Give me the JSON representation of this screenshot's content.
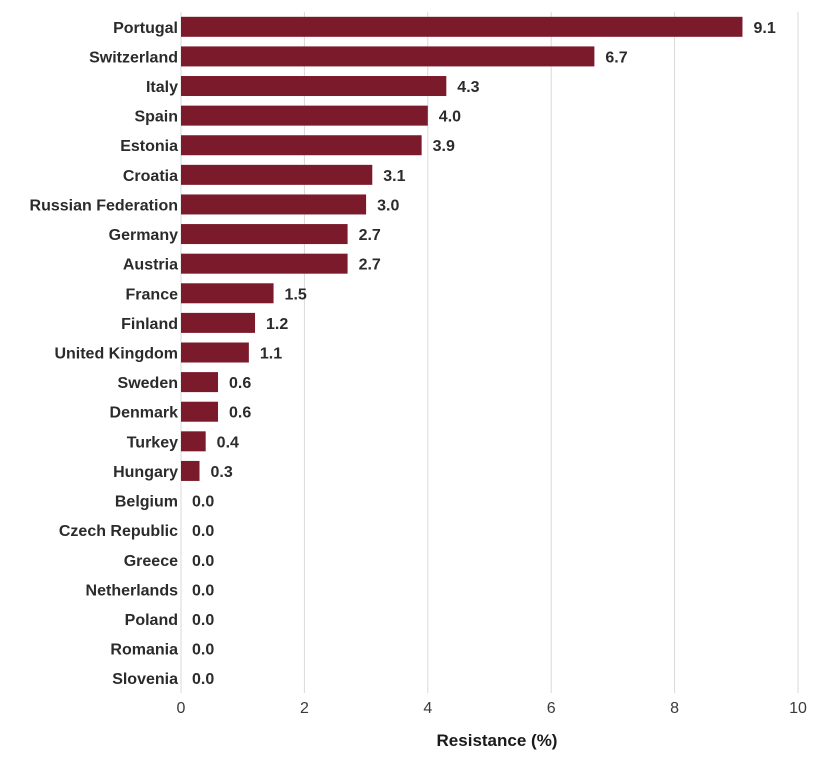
{
  "chart_data": {
    "type": "bar",
    "orientation": "horizontal",
    "xlabel": "Resistance (%)",
    "ylabel": "",
    "xlim": [
      0,
      10
    ],
    "xticks": [
      0,
      2,
      4,
      6,
      8,
      10
    ],
    "grid": "vertical",
    "bar_color": "#7b1a2b",
    "categories": [
      "Portugal",
      "Switzerland",
      "Italy",
      "Spain",
      "Estonia",
      "Croatia",
      "Russian Federation",
      "Germany",
      "Austria",
      "France",
      "Finland",
      "United Kingdom",
      "Sweden",
      "Denmark",
      "Turkey",
      "Hungary",
      "Belgium",
      "Czech Republic",
      "Greece",
      "Netherlands",
      "Poland",
      "Romania",
      "Slovenia"
    ],
    "values": [
      9.1,
      6.7,
      4.3,
      4.0,
      3.9,
      3.1,
      3.0,
      2.7,
      2.7,
      1.5,
      1.2,
      1.1,
      0.6,
      0.6,
      0.4,
      0.3,
      0.0,
      0.0,
      0.0,
      0.0,
      0.0,
      0.0,
      0.0
    ],
    "value_labels": [
      "9.1",
      "6.7",
      "4.3",
      "4.0",
      "3.9",
      "3.1",
      "3.0",
      "2.7",
      "2.7",
      "1.5",
      "1.2",
      "1.1",
      "0.6",
      "0.6",
      "0.4",
      "0.3",
      "0.0",
      "0.0",
      "0.0",
      "0.0",
      "0.0",
      "0.0",
      "0.0"
    ]
  }
}
